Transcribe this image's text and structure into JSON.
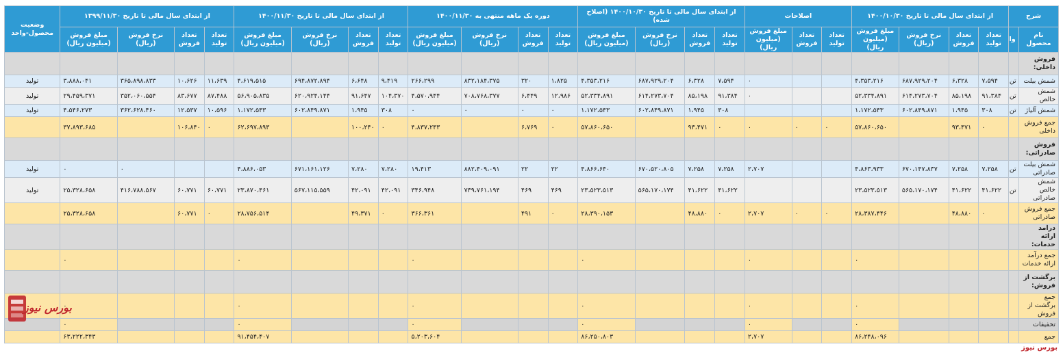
{
  "headers": {
    "top": [
      "شرح",
      "از ابتدای سال مالی تا تاریخ ۱۴۰۰/۱۰/۳۰",
      "اصلاحات",
      "از ابتدای سال مالی تا تاریخ ۱۴۰۰/۱۰/۳۰ (اصلاح شده)",
      "دوره یک ماهه منتهی به ۱۴۰۰/۱۱/۳۰",
      "از ابتدای سال مالی تا تاریخ ۱۴۰۰/۱۱/۳۰",
      "از ابتدای سال مالی تا تاریخ ۱۳۹۹/۱۱/۳۰",
      "وضعیت محصول-واحد"
    ],
    "desc": [
      "نام محصول",
      "واحد"
    ],
    "cols4": [
      "تعداد تولید",
      "تعداد فروش",
      "نرخ فروش (ریال)",
      "مبلغ فروش (میلیون ریال)"
    ],
    "cols3": [
      "تعداد تولید",
      "تعداد فروش",
      "مبلغ فروش (میلیون ریال)"
    ]
  },
  "rows": [
    {
      "type": "cat",
      "label": "فروش داخلی:"
    },
    {
      "type": "item",
      "label": "شمش بیلت",
      "unit": "تن",
      "status": "تولید",
      "cells": [
        "۷،۵۹۴",
        "۶،۳۲۸",
        "۶۸۷،۹۲۹،۲۰۴",
        "۴،۳۵۳،۲۱۶",
        "",
        "",
        "۰",
        "۷،۵۹۴",
        "۶،۳۲۸",
        "۶۸۷،۹۲۹،۲۰۴",
        "۴،۳۵۳،۲۱۶",
        "۱،۸۲۵",
        "۳۲۰",
        "۸۳۲،۱۸۴،۳۷۵",
        "۲۶۶،۲۹۹",
        "۹،۴۱۹",
        "۶،۶۴۸",
        "۶۹۴،۸۷۲،۸۹۴",
        "۴،۶۱۹،۵۱۵",
        "۱۱،۶۳۹",
        "۱۰،۶۲۶",
        "۳۶۵،۸۹۸،۸۳۳",
        "۳،۸۸۸،۰۴۱"
      ]
    },
    {
      "type": "item",
      "alt": true,
      "label": "شمش خالص",
      "unit": "تن",
      "status": "تولید",
      "cells": [
        "۹۱،۳۸۴",
        "۸۵،۱۹۸",
        "۶۱۴،۲۷۳،۷۰۴",
        "۵۲،۳۳۴،۸۹۱",
        "",
        "",
        "۰",
        "۹۱،۳۸۴",
        "۸۵،۱۹۸",
        "۶۱۴،۲۷۳،۷۰۴",
        "۵۲،۳۳۴،۸۹۱",
        "۱۲،۹۸۶",
        "۶،۴۴۹",
        "۷۰۸،۷۶۸،۳۷۷",
        "۴،۵۷۰،۹۴۴",
        "۱۰۴،۳۷۰",
        "۹۱،۶۴۷",
        "۶۲۰،۹۲۴،۱۴۴",
        "۵۶،۹۰۵،۸۳۵",
        "۸۷،۴۸۸",
        "۸۳،۶۷۷",
        "۳۵۲،۰۶۰،۵۵۴",
        "۲۹،۴۵۹،۳۷۱"
      ]
    },
    {
      "type": "item",
      "label": "شمش آلیاژ",
      "unit": "تن",
      "status": "تولید",
      "cells": [
        "۳۰۸",
        "۱،۹۴۵",
        "۶۰۲،۸۴۹،۸۷۱",
        "۱،۱۷۲،۵۴۳",
        "",
        "",
        "",
        "۳۰۸",
        "۱،۹۴۵",
        "۶۰۲،۸۴۹،۸۷۱",
        "۱،۱۷۲،۵۴۳",
        "۰",
        "۰",
        "۰",
        "۰",
        "۳۰۸",
        "۱،۹۴۵",
        "۶۰۲،۸۴۹،۸۷۱",
        "۱،۱۷۲،۵۴۳",
        "۱۰،۵۹۶",
        "۱۲،۵۳۷",
        "۳۶۲،۶۲۸،۴۶۰",
        "۴،۵۴۶،۲۷۳"
      ]
    },
    {
      "type": "sum",
      "label": "جمع فروش داخلی",
      "unit": "",
      "status": "",
      "cells": [
        "۰",
        "۹۳،۴۷۱",
        "",
        "۵۷،۸۶۰،۶۵۰",
        "۰",
        "۰",
        "۰",
        "۰",
        "۹۳،۴۷۱",
        "",
        "۵۷،۸۶۰،۶۵۰",
        "۰",
        "۶،۷۶۹",
        "",
        "۴،۸۳۷،۲۴۳",
        "۰",
        "۱۰۰،۲۴۰",
        "",
        "۶۲،۶۹۷،۸۹۳",
        "۰",
        "۱۰۶،۸۴۰",
        "",
        "۳۷،۸۹۳،۶۸۵"
      ]
    },
    {
      "type": "cat",
      "label": "فروش صادراتی:"
    },
    {
      "type": "item",
      "label": "شمش بیلت صادراتی",
      "unit": "تن",
      "status": "تولید",
      "cells": [
        "۷،۲۵۸",
        "۷،۲۵۸",
        "۶۷۰،۱۴۷،۸۳۷",
        "۴،۸۶۳،۹۳۳",
        "",
        "",
        "۲،۷۰۷",
        "۷،۲۵۸",
        "۷،۲۵۸",
        "۶۷۰،۵۲۰،۸۰۵",
        "۴،۸۶۶،۶۴۰",
        "۲۲",
        "۲۲",
        "۸۸۲،۴۰۹،۰۹۱",
        "۱۹،۴۱۳",
        "۷،۲۸۰",
        "۷،۲۸۰",
        "۶۷۱،۱۶۱،۱۲۶",
        "۴،۸۸۶،۰۵۳",
        "",
        "",
        "۰",
        "۰"
      ]
    },
    {
      "type": "item",
      "alt": true,
      "tall": true,
      "label": "شمش خالص صادراتی",
      "unit": "تن",
      "status": "تولید",
      "cells": [
        "۴۱،۶۲۲",
        "۴۱،۶۲۲",
        "۵۶۵،۱۷۰،۱۷۴",
        "۲۳،۵۲۳،۵۱۳",
        "",
        "",
        "",
        "۴۱،۶۲۲",
        "۴۱،۶۲۲",
        "۵۶۵،۱۷۰،۱۷۴",
        "۲۳،۵۲۳،۵۱۳",
        "۴۶۹",
        "۴۶۹",
        "۷۳۹،۷۶۱،۱۹۴",
        "۳۴۶،۹۴۸",
        "۴۲،۰۹۱",
        "۴۲،۰۹۱",
        "۵۶۷،۱۱۵،۵۵۹",
        "۲۳،۸۷۰،۴۶۱",
        "۶۰،۷۷۱",
        "۶۰،۷۷۱",
        "۴۱۶،۷۸۸،۵۶۷",
        "۲۵،۳۲۸،۶۵۸"
      ]
    },
    {
      "type": "sum",
      "label": "جمع فروش صادراتی",
      "unit": "",
      "status": "",
      "cells": [
        "۰",
        "۴۸،۸۸۰",
        "",
        "۲۸،۳۸۷،۴۴۶",
        "۰",
        "۰",
        "۲،۷۰۷",
        "۰",
        "۴۸،۸۸۰",
        "",
        "۲۸،۳۹۰،۱۵۳",
        "۰",
        "۴۹۱",
        "",
        "۳۶۶،۳۶۱",
        "۰",
        "۴۹،۳۷۱",
        "",
        "۲۸،۷۵۶،۵۱۴",
        "۰",
        "۶۰،۷۷۱",
        "",
        "۲۵،۳۲۸،۶۵۸"
      ]
    },
    {
      "type": "cat",
      "label": "درآمد ارائه خدمات:"
    },
    {
      "type": "sum",
      "label": "جمع درآمد ارائه خدمات",
      "unit": "",
      "status": "",
      "cells": [
        "",
        "",
        "",
        "۰",
        "",
        "",
        "۰",
        "",
        "",
        "",
        "۰",
        "",
        "",
        "",
        "۰",
        "",
        "",
        "",
        "۰",
        "",
        "",
        "",
        "۰"
      ]
    },
    {
      "type": "cat",
      "label": "برگشت از فروش:"
    },
    {
      "type": "sum",
      "label": "جمع برگشت از فروش",
      "unit": "",
      "status": "",
      "cells": [
        "",
        "",
        "",
        "۰",
        "",
        "",
        "۰",
        "",
        "",
        "",
        "۰",
        "",
        "",
        "",
        "۰",
        "",
        "",
        "",
        "۰",
        "",
        "",
        "",
        "۰"
      ]
    },
    {
      "type": "gray",
      "label": "تخفیفات",
      "unit": "",
      "status": "",
      "cells": [
        "",
        "",
        "",
        "۰",
        "",
        "",
        "۰",
        "",
        "",
        "",
        "۰",
        "",
        "",
        "",
        "۰",
        "",
        "",
        "",
        "۰",
        "",
        "",
        "",
        "۰"
      ]
    },
    {
      "type": "sum",
      "thin": true,
      "label": "جمع",
      "unit": "",
      "status": "",
      "cells": [
        "",
        "",
        "",
        "۸۶،۲۴۸،۰۹۶",
        "",
        "",
        "۲،۷۰۷",
        "",
        "",
        "",
        "۸۶،۲۵۰،۸۰۳",
        "",
        "",
        "",
        "۵،۲۰۳،۶۰۴",
        "",
        "",
        "",
        "۹۱،۴۵۴،۴۰۷",
        "",
        "",
        "",
        "۶۳،۲۲۲،۳۴۳"
      ]
    }
  ],
  "watermark": {
    "logo_text": "بورس نیوز",
    "brand": "بورس نیوز",
    "icon": "bourse-news-logo-icon",
    "color": "#c0272d"
  },
  "colors": {
    "header": "#2f9bd4",
    "item": "#dcebf8",
    "item_alt": "#eeeeee",
    "sum": "#fde5a7",
    "category": "#d9d9d9"
  }
}
